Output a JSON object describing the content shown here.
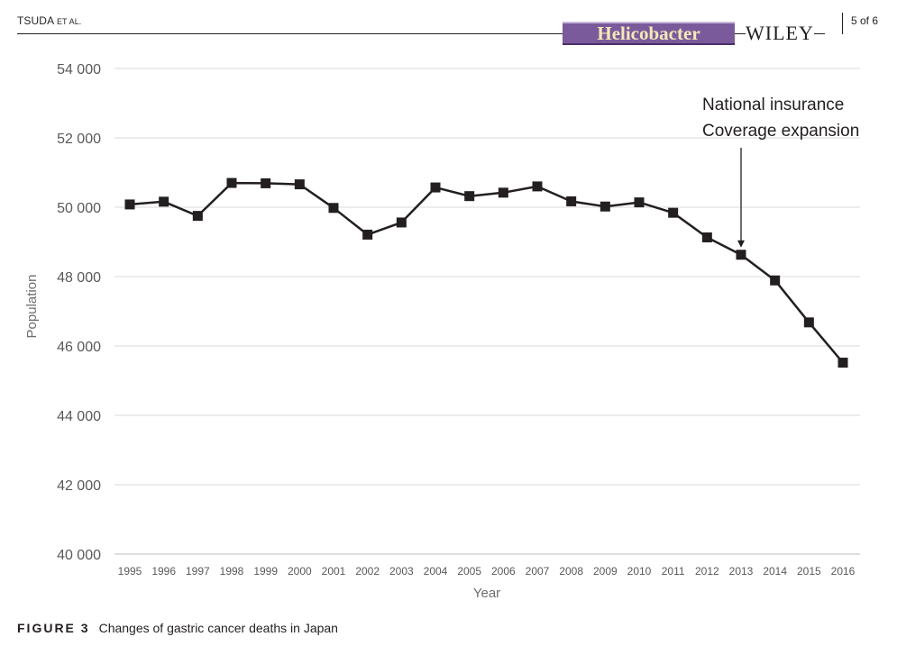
{
  "header": {
    "author": "TSUDA",
    "et_al": "ET AL.",
    "journal": "Helicobacter",
    "publisher": "WILEY",
    "page": "5 of 6"
  },
  "caption": {
    "label": "FIGURE 3",
    "text": "Changes of gastric cancer deaths in Japan"
  },
  "chart_data": {
    "type": "line",
    "title": "",
    "xlabel": "Year",
    "ylabel": "Population",
    "ylim": [
      40000,
      54000
    ],
    "yticks": [
      40000,
      42000,
      44000,
      46000,
      48000,
      50000,
      52000,
      54000
    ],
    "ytick_labels": [
      "40 000",
      "42 000",
      "44 000",
      "46 000",
      "48 000",
      "50 000",
      "52 000",
      "54 000"
    ],
    "grid": true,
    "legend": "none",
    "categories": [
      "1995",
      "1996",
      "1997",
      "1998",
      "1999",
      "2000",
      "2001",
      "2002",
      "2003",
      "2004",
      "2005",
      "2006",
      "2007",
      "2008",
      "2009",
      "2010",
      "2011",
      "2012",
      "2013",
      "2014",
      "2015",
      "2016"
    ],
    "series": [
      {
        "color": "#231f20",
        "marker": "square",
        "values": [
          50080,
          50160,
          49750,
          50700,
          50690,
          50660,
          49980,
          49210,
          49560,
          50570,
          50320,
          50420,
          50600,
          50170,
          50020,
          50140,
          49840,
          49130,
          48630,
          47890,
          46680,
          45520
        ]
      }
    ],
    "annotations": [
      {
        "lines": [
          "National insurance",
          "Coverage expansion"
        ],
        "target_category": "2013",
        "arrow": true
      }
    ]
  }
}
